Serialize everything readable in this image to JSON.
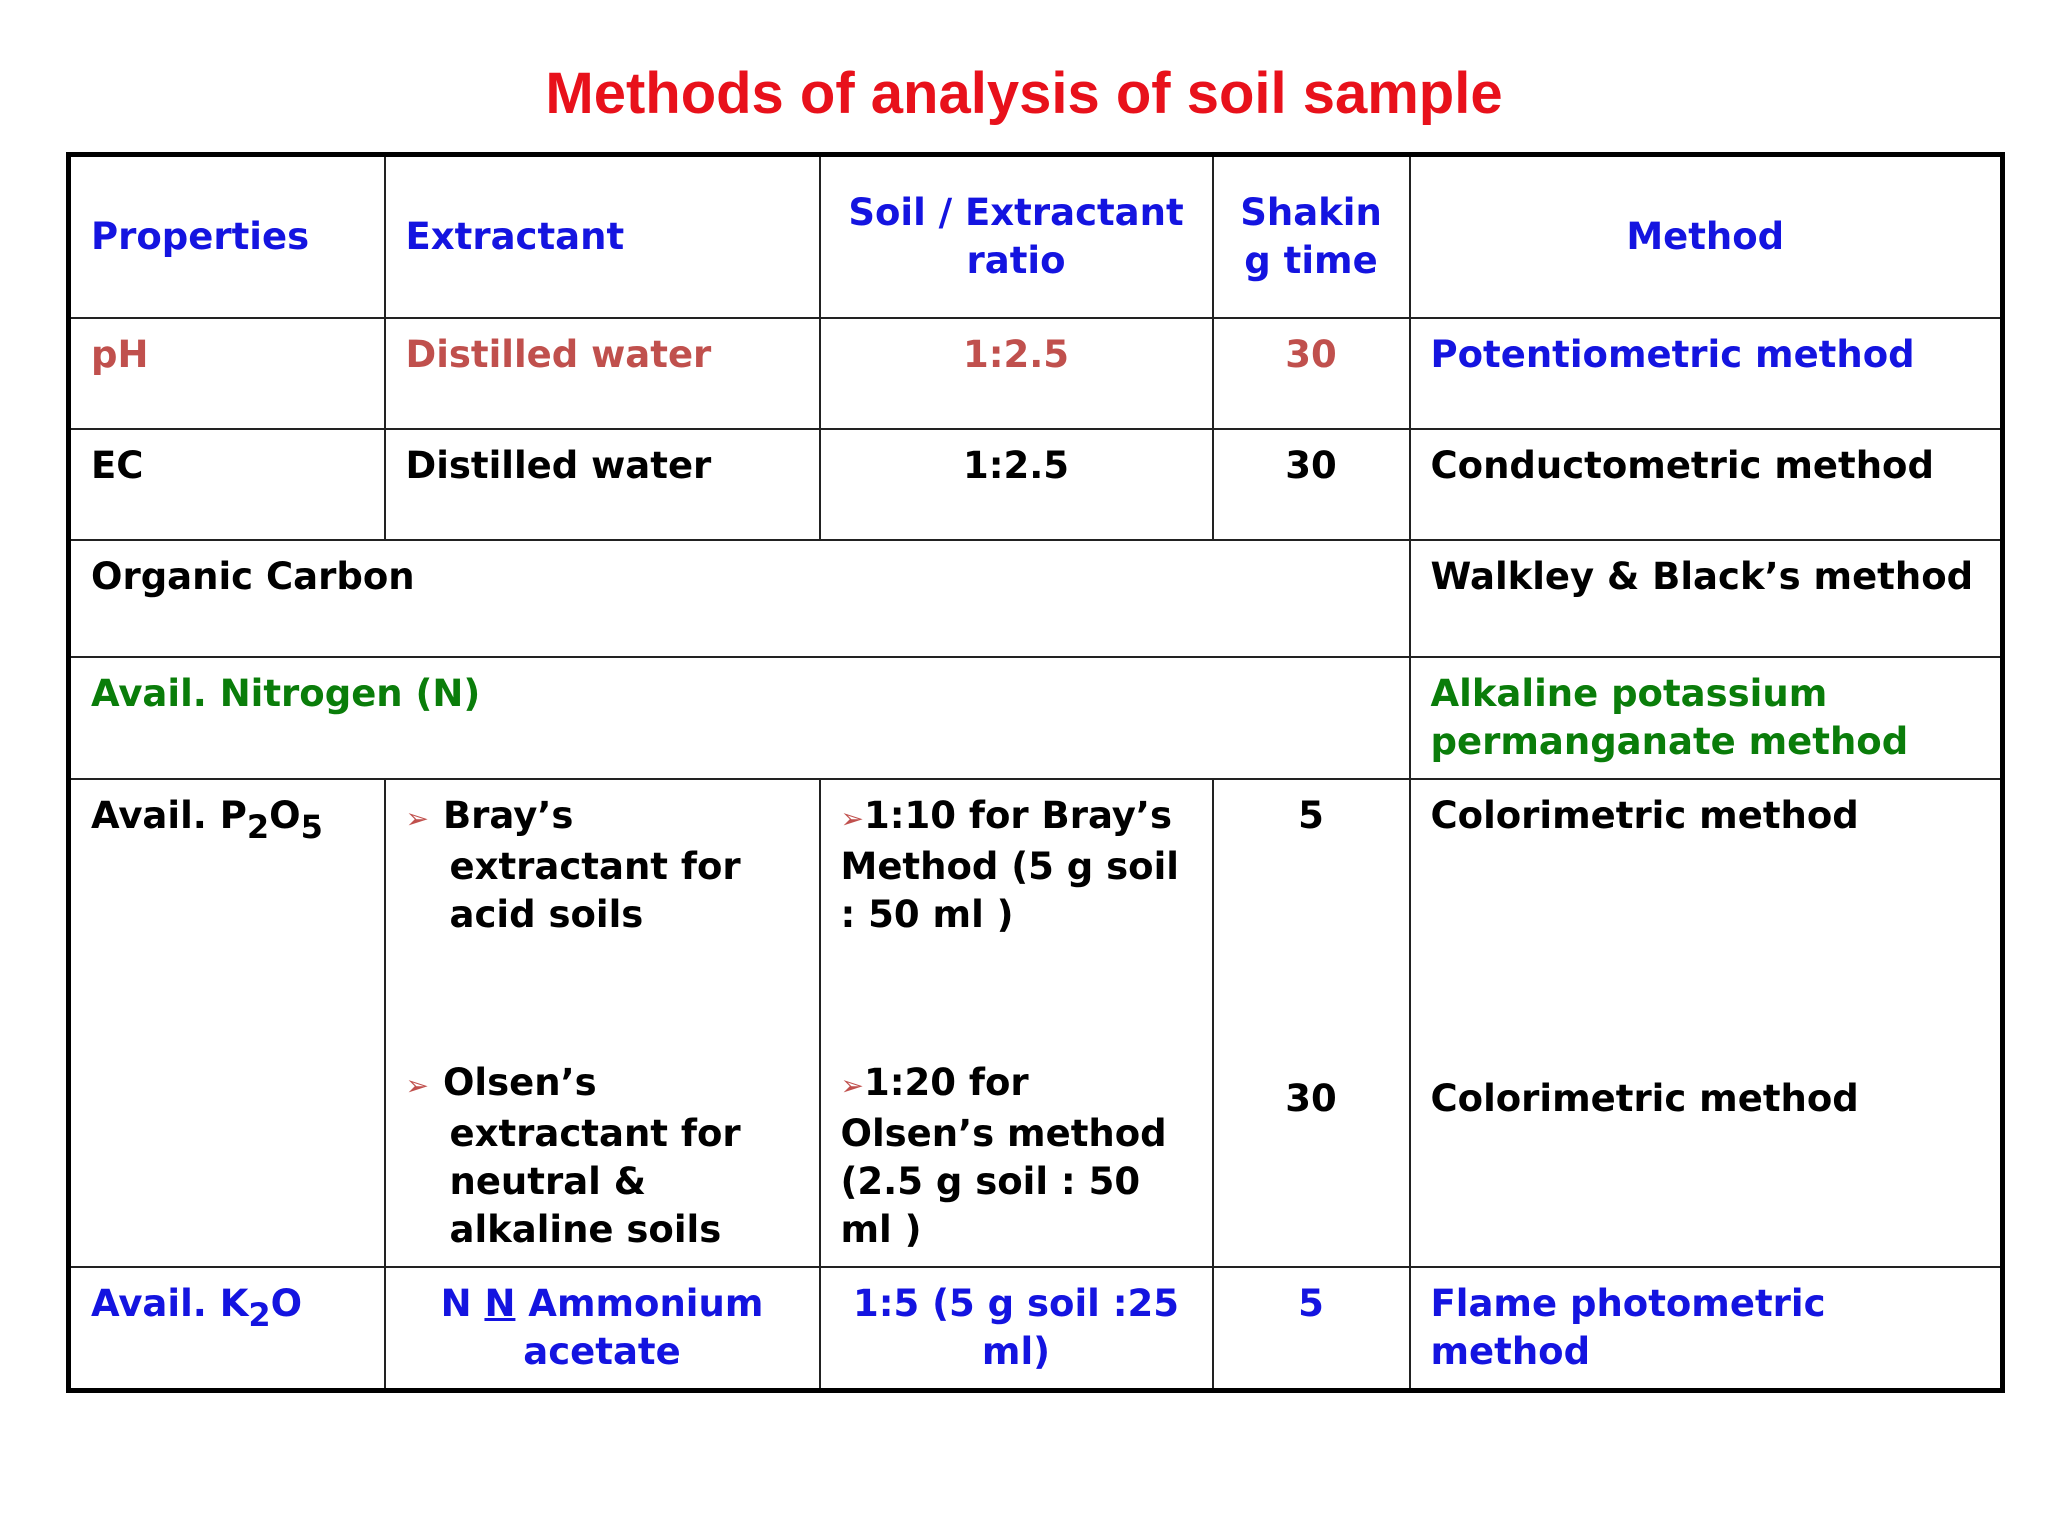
{
  "title": "Methods of analysis of soil sample",
  "table": {
    "header": {
      "properties": "Properties",
      "extractant": "Extractant",
      "ratio": "Soil / Extractant ratio",
      "time": [
        "Shakin",
        "g time"
      ],
      "method": "Method"
    },
    "rows": [
      [
        "pH",
        "Distilled water",
        "1:2.5",
        "30",
        "Potentiometric method"
      ],
      [
        "EC",
        "Distilled water",
        "1:2.5",
        "30",
        "Conductometric method"
      ],
      [
        "Organic Carbon",
        "Walkley & Black’s method"
      ],
      [
        "Avail. Nitrogen (N)",
        "Alkaline potassium permanganate method"
      ],
      {
        "property": [
          "Avail. P",
          "2",
          "O",
          "5"
        ],
        "entries": [
          [
            "Bray’s extractant for acid soils",
            "1:10 for Bray’s Method (5 g soil : 50 ml )",
            "5",
            "Colorimetric method"
          ],
          [
            "Olsen’s extractant for neutral & alkaline soils",
            "1:20 for Olsen’s method (2.5 g soil : 50 ml )",
            "30",
            "Colorimetric method"
          ]
        ]
      },
      {
        "property": [
          "Avail. K",
          "2",
          "O"
        ],
        "extractant": [
          "N ",
          "N",
          " Ammonium acetate"
        ],
        "ratio": "1:5 (5 g soil :25 ml)",
        "time": "5",
        "method": "Flame photometric method"
      }
    ]
  }
}
